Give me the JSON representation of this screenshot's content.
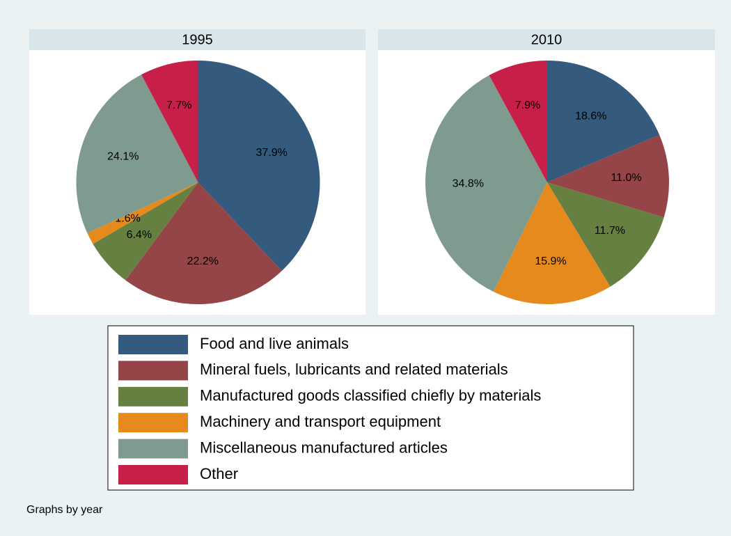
{
  "chart_data": {
    "type": "pie",
    "categories": [
      "Food and live animals",
      "Mineral fuels, lubricants and related materials",
      "Manufactured goods classified chiefly by materials",
      "Machinery and transport equipment",
      "Miscellaneous manufactured articles",
      "Other"
    ],
    "colors": [
      "#345a7e",
      "#954548",
      "#658040",
      "#e68a1e",
      "#7f9a8f",
      "#c81f48"
    ],
    "series": [
      {
        "name": "1995",
        "values": [
          37.9,
          22.2,
          6.4,
          1.6,
          24.1,
          7.7
        ],
        "value_labels": [
          "37.9%",
          "22.2%",
          "6.4%",
          "1.6%",
          "24.1%",
          "7.7%"
        ]
      },
      {
        "name": "2010",
        "values": [
          18.6,
          11.0,
          11.7,
          15.9,
          34.8,
          7.9
        ],
        "value_labels": [
          "18.6%",
          "11.0%",
          "11.7%",
          "15.9%",
          "34.8%",
          "7.9%"
        ]
      }
    ],
    "note": "Graphs by year"
  }
}
